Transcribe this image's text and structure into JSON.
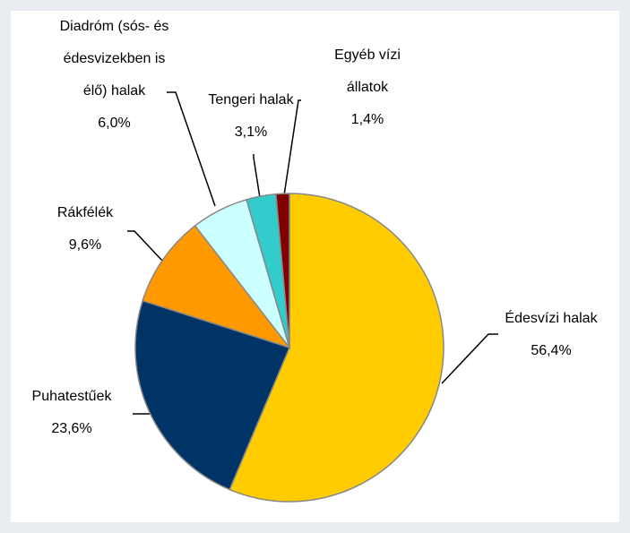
{
  "chart_data": {
    "type": "pie",
    "categories": [
      "Édesvízi halak",
      "Puhatestűek",
      "Rákfélék",
      "Diadróm (sós- és édesvizekben is élő) halak",
      "Tengeri halak",
      "Egyéb vízi állatok"
    ],
    "values": [
      56.4,
      23.6,
      9.6,
      6.0,
      3.1,
      1.4
    ],
    "value_labels": [
      "56,4%",
      "23,6%",
      "9,6%",
      "6,0%",
      "3,1%",
      "1,4%"
    ],
    "colors": [
      "#FFCC00",
      "#003366",
      "#FF9900",
      "#CCFFFF",
      "#33CCCC",
      "#800000"
    ]
  }
}
